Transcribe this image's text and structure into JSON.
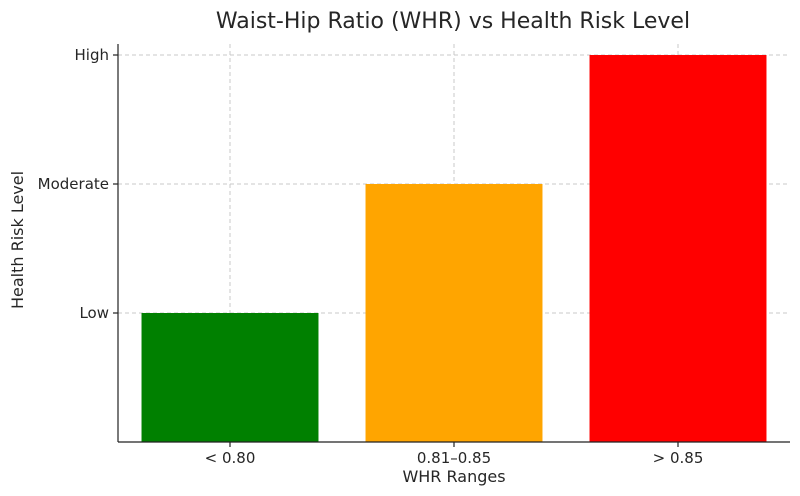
{
  "chart_data": {
    "type": "bar",
    "title": "Waist-Hip Ratio (WHR) vs Health Risk Level",
    "xlabel": "WHR Ranges",
    "ylabel": "Health Risk Level",
    "categories": [
      "< 0.80",
      "0.81–0.85",
      "> 0.85"
    ],
    "values": [
      1,
      2,
      3
    ],
    "bar_colors": [
      "#008000",
      "#FFA500",
      "#FF0000"
    ],
    "y_ticks": [
      {
        "value": 1,
        "label": "Low"
      },
      {
        "value": 2,
        "label": "Moderate"
      },
      {
        "value": 3,
        "label": "High"
      }
    ],
    "ylim": [
      0,
      3
    ],
    "grid": true,
    "legend": "none"
  }
}
